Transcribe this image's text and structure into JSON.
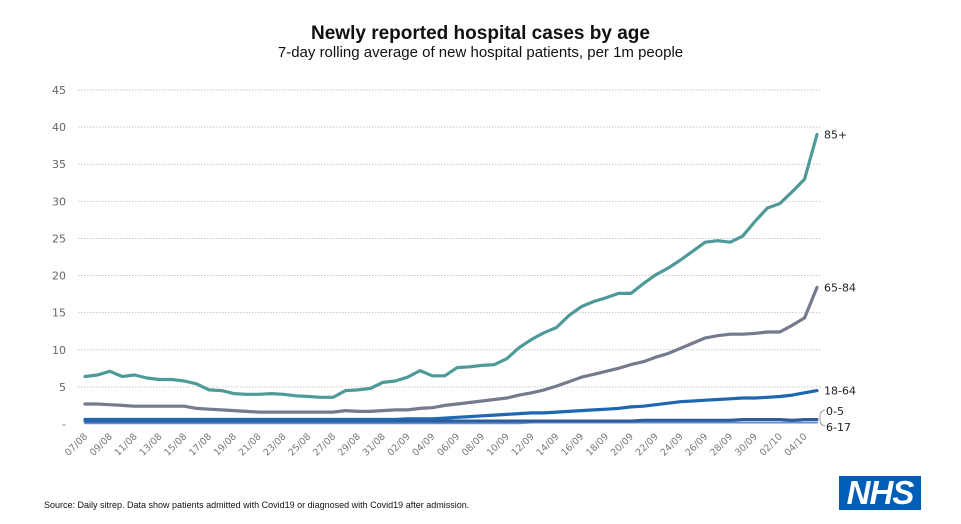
{
  "chart_data": {
    "type": "line",
    "title": "Newly reported hospital cases by age",
    "subtitle": "7-day rolling average of new hospital patients, per 1m people",
    "xlabel": "",
    "ylabel": "",
    "ylim": [
      0,
      45
    ],
    "yticks": [
      0,
      5,
      10,
      15,
      20,
      25,
      30,
      35,
      40,
      45
    ],
    "ytick_labels": [
      "-",
      "5",
      "10",
      "15",
      "20",
      "25",
      "30",
      "35",
      "40",
      "45"
    ],
    "grid": true,
    "legend": "line-end labels (right)",
    "x": [
      "07/08",
      "08/08",
      "09/08",
      "10/08",
      "11/08",
      "12/08",
      "13/08",
      "14/08",
      "15/08",
      "16/08",
      "17/08",
      "18/08",
      "19/08",
      "20/08",
      "21/08",
      "22/08",
      "23/08",
      "24/08",
      "25/08",
      "26/08",
      "27/08",
      "28/08",
      "29/08",
      "30/08",
      "31/08",
      "01/09",
      "02/09",
      "03/09",
      "04/09",
      "05/09",
      "06/09",
      "07/09",
      "08/09",
      "09/09",
      "10/09",
      "11/09",
      "12/09",
      "13/09",
      "14/09",
      "15/09",
      "16/09",
      "17/09",
      "18/09",
      "19/09",
      "20/09",
      "21/09",
      "22/09",
      "23/09",
      "24/09",
      "25/09",
      "26/09",
      "27/09",
      "28/09",
      "29/09",
      "30/09",
      "01/10",
      "02/10",
      "03/10",
      "04/10",
      "05/10"
    ],
    "xtick_labels": [
      "07/08",
      "09/08",
      "11/08",
      "13/08",
      "15/08",
      "17/08",
      "19/08",
      "21/08",
      "23/08",
      "25/08",
      "27/08",
      "29/08",
      "31/08",
      "02/09",
      "04/09",
      "06/09",
      "08/09",
      "10/09",
      "12/09",
      "14/09",
      "16/09",
      "18/09",
      "20/09",
      "22/09",
      "24/09",
      "26/09",
      "28/09",
      "30/09",
      "02/10",
      "04/10"
    ],
    "series": [
      {
        "name": "85+",
        "color": "#4E9A99",
        "values": [
          6.4,
          6.6,
          7.1,
          6.4,
          6.6,
          6.2,
          6.0,
          6.0,
          5.8,
          5.4,
          4.6,
          4.5,
          4.1,
          4.0,
          4.0,
          4.1,
          4.0,
          3.8,
          3.7,
          3.6,
          3.6,
          4.5,
          4.6,
          4.8,
          5.6,
          5.8,
          6.3,
          7.2,
          6.5,
          6.5,
          7.6,
          7.7,
          7.9,
          8.0,
          8.8,
          10.3,
          11.4,
          12.3,
          13.0,
          14.6,
          15.8,
          16.5,
          17.0,
          17.6,
          17.6,
          18.9,
          20.1,
          21.0,
          22.1,
          23.3,
          24.5,
          24.7,
          24.5,
          25.3,
          27.3,
          29.1,
          29.7,
          31.3,
          33.0,
          39.0
        ]
      },
      {
        "name": "65-84",
        "color": "#767A8E",
        "values": [
          2.7,
          2.7,
          2.6,
          2.5,
          2.4,
          2.4,
          2.4,
          2.4,
          2.4,
          2.1,
          2.0,
          1.9,
          1.8,
          1.7,
          1.6,
          1.6,
          1.6,
          1.6,
          1.6,
          1.6,
          1.6,
          1.8,
          1.7,
          1.7,
          1.8,
          1.9,
          1.9,
          2.1,
          2.2,
          2.5,
          2.7,
          2.9,
          3.1,
          3.3,
          3.5,
          3.9,
          4.2,
          4.6,
          5.1,
          5.7,
          6.3,
          6.7,
          7.1,
          7.5,
          8.0,
          8.4,
          9.0,
          9.5,
          10.2,
          10.9,
          11.6,
          11.9,
          12.1,
          12.1,
          12.2,
          12.4,
          12.4,
          13.3,
          14.3,
          18.4
        ]
      },
      {
        "name": "18-64",
        "color": "#1F67B1",
        "values": [
          0.6,
          0.6,
          0.6,
          0.6,
          0.6,
          0.6,
          0.6,
          0.6,
          0.6,
          0.6,
          0.6,
          0.6,
          0.6,
          0.6,
          0.6,
          0.6,
          0.6,
          0.6,
          0.6,
          0.6,
          0.6,
          0.6,
          0.6,
          0.6,
          0.6,
          0.6,
          0.7,
          0.7,
          0.7,
          0.8,
          0.9,
          1.0,
          1.1,
          1.2,
          1.3,
          1.4,
          1.5,
          1.5,
          1.6,
          1.7,
          1.8,
          1.9,
          2.0,
          2.1,
          2.3,
          2.4,
          2.6,
          2.8,
          3.0,
          3.1,
          3.2,
          3.3,
          3.4,
          3.5,
          3.5,
          3.6,
          3.7,
          3.9,
          4.2,
          4.5
        ]
      },
      {
        "name": "0-5",
        "color": "#2E5C9A",
        "values": [
          0.4,
          0.4,
          0.4,
          0.4,
          0.4,
          0.4,
          0.4,
          0.4,
          0.4,
          0.4,
          0.4,
          0.4,
          0.4,
          0.4,
          0.4,
          0.4,
          0.4,
          0.4,
          0.4,
          0.4,
          0.4,
          0.4,
          0.4,
          0.4,
          0.4,
          0.4,
          0.4,
          0.4,
          0.4,
          0.4,
          0.4,
          0.4,
          0.4,
          0.4,
          0.4,
          0.4,
          0.4,
          0.4,
          0.4,
          0.4,
          0.4,
          0.4,
          0.4,
          0.4,
          0.4,
          0.5,
          0.5,
          0.5,
          0.5,
          0.5,
          0.5,
          0.5,
          0.5,
          0.6,
          0.6,
          0.6,
          0.6,
          0.5,
          0.6,
          0.6
        ]
      },
      {
        "name": "6-17",
        "color": "#5B8FD0",
        "values": [
          0.1,
          0.1,
          0.1,
          0.1,
          0.1,
          0.1,
          0.1,
          0.1,
          0.1,
          0.1,
          0.1,
          0.1,
          0.1,
          0.1,
          0.1,
          0.1,
          0.1,
          0.1,
          0.1,
          0.1,
          0.1,
          0.1,
          0.1,
          0.1,
          0.1,
          0.1,
          0.1,
          0.1,
          0.1,
          0.1,
          0.1,
          0.1,
          0.1,
          0.1,
          0.1,
          0.1,
          0.2,
          0.2,
          0.2,
          0.2,
          0.2,
          0.2,
          0.2,
          0.2,
          0.2,
          0.2,
          0.2,
          0.2,
          0.2,
          0.2,
          0.2,
          0.2,
          0.2,
          0.2,
          0.2,
          0.2,
          0.2,
          0.2,
          0.2,
          0.2
        ]
      }
    ]
  },
  "footer": {
    "source": "Source: Daily sitrep. Data show patients admitted with Covid19 or diagnosed with Covid19 after admission.",
    "logo_text": "NHS"
  }
}
